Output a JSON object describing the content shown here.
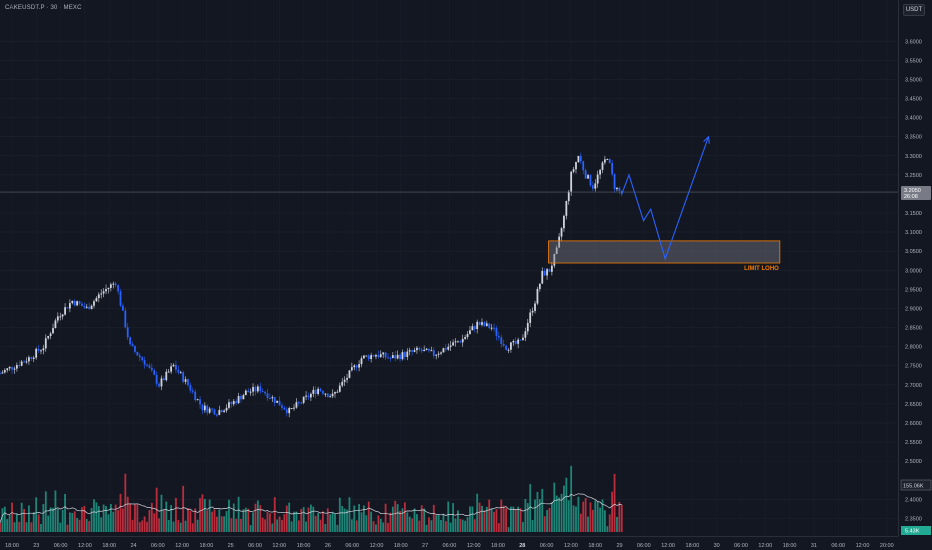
{
  "header": {
    "symbol_label": "CAKEUSDT.P · 30 · MEXC",
    "currency_button": "USDT"
  },
  "colors": {
    "bg": "#131722",
    "up": "#d1d4dc",
    "down": "#2962ff",
    "vol_up": "#22ab94",
    "vol_down": "#f23645",
    "zone": "#f57c00",
    "arrow": "#2962ff"
  },
  "price_axis": {
    "ticks": [
      "3.6000",
      "3.5500",
      "3.5000",
      "3.4500",
      "3.4000",
      "3.3500",
      "3.3000",
      "3.2500",
      "3.1500",
      "3.1000",
      "3.0500",
      "3.0000",
      "2.9500",
      "2.9000",
      "2.8500",
      "2.8000",
      "2.7500",
      "2.7000",
      "2.6500",
      "2.6000",
      "2.5500",
      "2.5000",
      "2.4000",
      "2.3500"
    ],
    "current_price": "3.2050",
    "countdown": "26:08",
    "volume_label": "155.06K",
    "volume_green_label": "5.43K"
  },
  "time_axis": {
    "labels": [
      "18:00",
      "23",
      "06:00",
      "12:00",
      "18:00",
      "24",
      "06:00",
      "12:00",
      "18:00",
      "25",
      "06:00",
      "12:00",
      "18:00",
      "26",
      "06:00",
      "12:00",
      "18:00",
      "27",
      "06:00",
      "12:00",
      "18:00",
      "28",
      "06:00",
      "12:00",
      "18:00",
      "29",
      "06:00",
      "12:00",
      "18:00",
      "30",
      "06:00",
      "12:00",
      "18:00",
      "31",
      "06:00",
      "12:00",
      "20:00"
    ]
  },
  "annotations": {
    "zone_label": "LIMIT LOHO"
  },
  "chart_data": {
    "type": "candlestick",
    "title": "",
    "y_range": [
      2.33,
      3.64
    ],
    "current_price": 3.205,
    "close_path": [
      [
        0,
        2.73
      ],
      [
        4,
        2.77
      ],
      [
        6,
        2.8
      ],
      [
        8,
        2.88
      ],
      [
        10,
        2.92
      ],
      [
        12,
        2.9
      ],
      [
        14,
        2.94
      ],
      [
        16,
        2.97
      ],
      [
        18,
        2.8
      ],
      [
        20,
        2.76
      ],
      [
        22,
        2.7
      ],
      [
        24,
        2.75
      ],
      [
        26,
        2.7
      ],
      [
        28,
        2.64
      ],
      [
        30,
        2.63
      ],
      [
        32,
        2.65
      ],
      [
        34,
        2.68
      ],
      [
        36,
        2.69
      ],
      [
        38,
        2.66
      ],
      [
        40,
        2.63
      ],
      [
        42,
        2.66
      ],
      [
        44,
        2.69
      ],
      [
        46,
        2.67
      ],
      [
        48,
        2.72
      ],
      [
        50,
        2.77
      ],
      [
        52,
        2.78
      ],
      [
        54,
        2.77
      ],
      [
        56,
        2.78
      ],
      [
        58,
        2.79
      ],
      [
        60,
        2.78
      ],
      [
        62,
        2.8
      ],
      [
        64,
        2.82
      ],
      [
        66,
        2.86
      ],
      [
        68,
        2.85
      ],
      [
        70,
        2.8
      ],
      [
        72,
        2.81
      ],
      [
        74,
        2.92
      ],
      [
        75,
        2.99
      ],
      [
        76,
        3.0
      ],
      [
        77,
        3.05
      ],
      [
        78,
        3.14
      ],
      [
        79,
        3.25
      ],
      [
        80,
        3.3
      ],
      [
        81,
        3.25
      ],
      [
        82,
        3.22
      ],
      [
        83,
        3.26
      ],
      [
        84,
        3.3
      ],
      [
        85,
        3.22
      ],
      [
        86,
        3.2
      ]
    ],
    "zone": {
      "label": "LIMIT LOHO",
      "low": 3.019,
      "high": 3.077,
      "x_start": 76,
      "x_end": 108
    },
    "projection": [
      [
        86,
        3.2
      ],
      [
        87,
        3.25
      ],
      [
        89,
        3.13
      ],
      [
        90,
        3.16
      ],
      [
        92,
        3.03
      ],
      [
        98,
        3.35
      ]
    ],
    "volume_avg_label": "155.06K"
  }
}
